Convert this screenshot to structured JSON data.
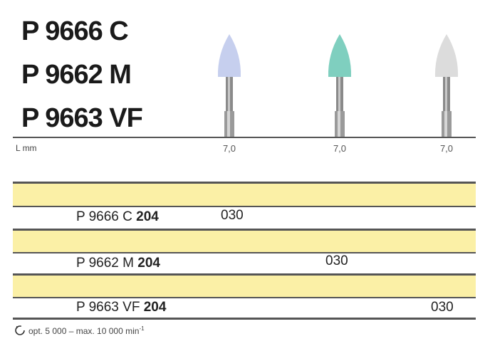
{
  "titles": [
    "P 9666 C",
    "P 9662 M",
    "P 9663 VF"
  ],
  "length_label": "L mm",
  "burs": [
    {
      "length": "7,0",
      "color": "#c6cfee"
    },
    {
      "length": "7,0",
      "color": "#7fcfbf"
    },
    {
      "length": "7,0",
      "color": "#dcdcdc"
    }
  ],
  "rows": [
    {
      "code": "P 9666 C",
      "shank": "204",
      "size": "030"
    },
    {
      "code": "P 9662 M",
      "shank": "204",
      "size": "030"
    },
    {
      "code": "P 9663 VF",
      "shank": "204",
      "size": "030"
    }
  ],
  "footer": {
    "icon": "rotation-speed-icon",
    "text": "opt. 5 000 – max. 10 000 min",
    "sup": "-1"
  },
  "colors": {
    "band": "#fbf0a6",
    "rule": "#555555"
  }
}
